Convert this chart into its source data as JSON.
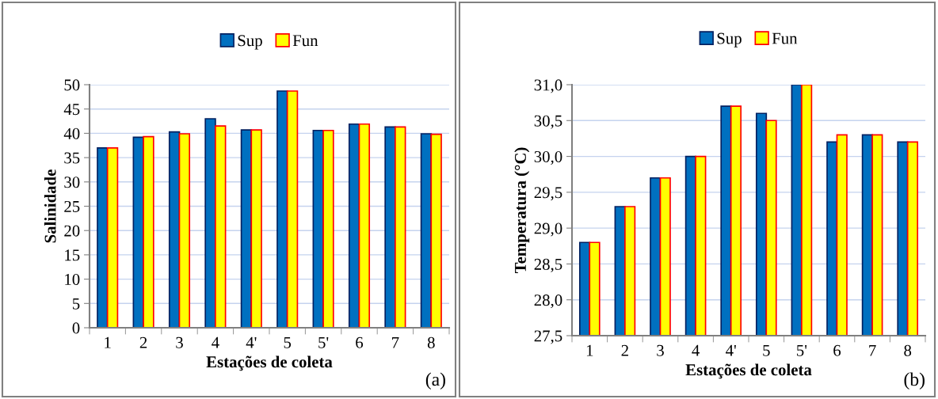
{
  "chart_data": [
    {
      "type": "bar",
      "xlabel": "Estações de coleta",
      "ylabel": "Salinidade",
      "categories": [
        "1",
        "2",
        "3",
        "4",
        "4'",
        "5",
        "5'",
        "6",
        "7",
        "8"
      ],
      "series": [
        {
          "name": "Sup",
          "color": "#0070c0",
          "values": [
            37.0,
            39.2,
            40.3,
            43.0,
            40.7,
            48.7,
            40.6,
            41.9,
            41.3,
            39.9
          ]
        },
        {
          "name": "Fun",
          "color": "#ffff00",
          "values": [
            37.0,
            39.3,
            39.9,
            41.5,
            40.7,
            48.7,
            40.6,
            41.9,
            41.3,
            39.8
          ]
        }
      ],
      "ylim": [
        0,
        50
      ],
      "yticks": [
        0,
        5,
        10,
        15,
        20,
        25,
        30,
        35,
        40,
        45,
        50
      ],
      "grid": "y",
      "legend": "top",
      "annotations": [
        "(a)"
      ]
    },
    {
      "type": "bar",
      "xlabel": "Estações de coleta",
      "ylabel": "Temperatura (°C)",
      "categories": [
        "1",
        "2",
        "3",
        "4",
        "4'",
        "5",
        "5'",
        "6",
        "7",
        "8"
      ],
      "series": [
        {
          "name": "Sup",
          "color": "#0070c0",
          "values": [
            28.8,
            29.3,
            29.7,
            30.0,
            30.7,
            30.6,
            31.0,
            30.2,
            30.3,
            30.2
          ]
        },
        {
          "name": "Fun",
          "color": "#ffff00",
          "values": [
            28.8,
            29.3,
            29.7,
            30.0,
            30.7,
            30.5,
            31.0,
            30.3,
            30.3,
            30.2
          ]
        }
      ],
      "ylim": [
        27.5,
        31.0
      ],
      "yticks": [
        {
          "value": 27.5,
          "label": "27,5"
        },
        {
          "value": 28.0,
          "label": "28,0"
        },
        {
          "value": 28.5,
          "label": "28,5"
        },
        {
          "value": 29.0,
          "label": "29,0"
        },
        {
          "value": 29.5,
          "label": "29,5"
        },
        {
          "value": 30.0,
          "label": "30,0"
        },
        {
          "value": 30.5,
          "label": "30,5"
        },
        {
          "value": 31.0,
          "label": "31,0"
        }
      ],
      "grid": "y",
      "legend": "top",
      "annotations": [
        "(b)"
      ]
    }
  ]
}
